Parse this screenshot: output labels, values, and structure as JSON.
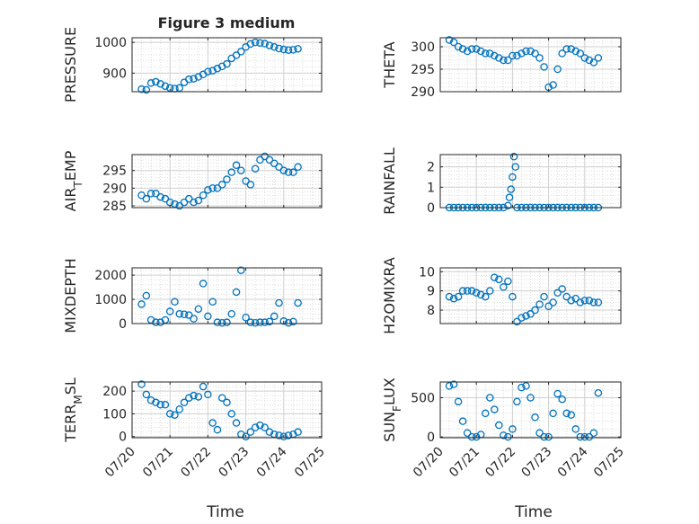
{
  "figure": {
    "title": "Figure 3 medium",
    "xlabel": "Time"
  },
  "chart_data": [
    {
      "type": "scatter",
      "title": "Figure 3 medium",
      "ylabel": "PRESSURE",
      "xlabel": "",
      "ylim": [
        840,
        1015
      ],
      "yticks": [
        900,
        1000
      ],
      "xlim": [
        "07/20",
        "07/25"
      ],
      "xticks": [
        "07/20",
        "07/21",
        "07/22",
        "07/23",
        "07/24",
        "07/25"
      ],
      "x_tick_labels_visible": false,
      "grid": true,
      "x": [
        "07/20 06:00",
        "07/20 09:00",
        "07/20 12:00",
        "07/20 15:00",
        "07/20 18:00",
        "07/20 21:00",
        "07/21 00:00",
        "07/21 03:00",
        "07/21 06:00",
        "07/21 09:00",
        "07/21 12:00",
        "07/21 15:00",
        "07/21 18:00",
        "07/21 21:00",
        "07/22 00:00",
        "07/22 03:00",
        "07/22 06:00",
        "07/22 09:00",
        "07/22 12:00",
        "07/22 15:00",
        "07/22 18:00",
        "07/22 21:00",
        "07/23 00:00",
        "07/23 03:00",
        "07/23 06:00",
        "07/23 09:00",
        "07/23 12:00",
        "07/23 15:00",
        "07/23 18:00",
        "07/23 21:00",
        "07/24 00:00",
        "07/24 03:00",
        "07/24 06:00",
        "07/24 09:00"
      ],
      "values": [
        848,
        846,
        868,
        872,
        865,
        858,
        852,
        850,
        852,
        870,
        880,
        882,
        888,
        896,
        905,
        908,
        915,
        922,
        930,
        948,
        958,
        970,
        985,
        995,
        1000,
        998,
        996,
        990,
        985,
        980,
        977,
        975,
        976,
        979
      ]
    },
    {
      "type": "scatter",
      "ylabel": "THETA",
      "ylim": [
        290,
        302
      ],
      "yticks": [
        290,
        295,
        300
      ],
      "xlim": [
        "07/20",
        "07/25"
      ],
      "xticks": [
        "07/20",
        "07/21",
        "07/22",
        "07/23",
        "07/24",
        "07/25"
      ],
      "x_tick_labels_visible": false,
      "grid": true,
      "x": [
        "07/20 06:00",
        "07/20 09:00",
        "07/20 12:00",
        "07/20 15:00",
        "07/20 18:00",
        "07/20 21:00",
        "07/21 00:00",
        "07/21 03:00",
        "07/21 06:00",
        "07/21 09:00",
        "07/21 12:00",
        "07/21 15:00",
        "07/21 18:00",
        "07/21 21:00",
        "07/22 00:00",
        "07/22 03:00",
        "07/22 06:00",
        "07/22 09:00",
        "07/22 12:00",
        "07/22 15:00",
        "07/22 18:00",
        "07/22 21:00",
        "07/23 00:00",
        "07/23 03:00",
        "07/23 06:00",
        "07/23 09:00",
        "07/23 12:00",
        "07/23 15:00",
        "07/23 18:00",
        "07/23 21:00",
        "07/24 00:00",
        "07/24 03:00",
        "07/24 06:00",
        "07/24 09:00"
      ],
      "values": [
        301.5,
        301,
        300,
        299.5,
        299,
        299.5,
        299.5,
        299,
        298.5,
        298.5,
        298,
        297.5,
        297,
        297,
        298,
        298,
        298.5,
        299,
        299,
        298.5,
        297.5,
        295.5,
        291,
        291.5,
        295,
        298.5,
        299.5,
        299.5,
        299,
        298.5,
        297.5,
        297,
        296.5,
        297.5
      ]
    },
    {
      "type": "scatter",
      "ylabel": "AIR_TEMP",
      "ylim": [
        284.5,
        299.5
      ],
      "yticks": [
        285,
        290,
        295
      ],
      "xlim": [
        "07/20",
        "07/25"
      ],
      "xticks": [
        "07/20",
        "07/21",
        "07/22",
        "07/23",
        "07/24",
        "07/25"
      ],
      "x_tick_labels_visible": false,
      "grid": true,
      "x": [
        "07/20 06:00",
        "07/20 09:00",
        "07/20 12:00",
        "07/20 15:00",
        "07/20 18:00",
        "07/20 21:00",
        "07/21 00:00",
        "07/21 03:00",
        "07/21 06:00",
        "07/21 09:00",
        "07/21 12:00",
        "07/21 15:00",
        "07/21 18:00",
        "07/21 21:00",
        "07/22 00:00",
        "07/22 03:00",
        "07/22 06:00",
        "07/22 09:00",
        "07/22 12:00",
        "07/22 15:00",
        "07/22 18:00",
        "07/22 21:00",
        "07/23 00:00",
        "07/23 03:00",
        "07/23 06:00",
        "07/23 09:00",
        "07/23 12:00",
        "07/23 15:00",
        "07/23 18:00",
        "07/23 21:00",
        "07/24 00:00",
        "07/24 03:00",
        "07/24 06:00",
        "07/24 09:00"
      ],
      "values": [
        288,
        287,
        288.5,
        288.5,
        287.5,
        287,
        286,
        285.5,
        285,
        286,
        287,
        286,
        286.5,
        288,
        289.5,
        290,
        290,
        291,
        292.5,
        294.5,
        296.5,
        295,
        292,
        291,
        295.5,
        298,
        299,
        298,
        297,
        296,
        295,
        294.5,
        294.5,
        296
      ]
    },
    {
      "type": "scatter",
      "ylabel": "RAINFALL",
      "ylim": [
        0,
        2.6
      ],
      "yticks": [
        0,
        1,
        2
      ],
      "xlim": [
        "07/20",
        "07/25"
      ],
      "xticks": [
        "07/20",
        "07/21",
        "07/22",
        "07/23",
        "07/24",
        "07/25"
      ],
      "x_tick_labels_visible": false,
      "grid": true,
      "x": [
        "07/20 06:00",
        "07/20 09:00",
        "07/20 12:00",
        "07/20 15:00",
        "07/20 18:00",
        "07/20 21:00",
        "07/21 00:00",
        "07/21 03:00",
        "07/21 06:00",
        "07/21 09:00",
        "07/21 12:00",
        "07/21 15:00",
        "07/21 18:00",
        "07/21 21:00",
        "07/21 22:00",
        "07/21 23:00",
        "07/22 00:00",
        "07/22 01:00",
        "07/22 02:00",
        "07/22 03:00",
        "07/22 06:00",
        "07/22 09:00",
        "07/22 12:00",
        "07/22 15:00",
        "07/22 18:00",
        "07/22 21:00",
        "07/23 00:00",
        "07/23 03:00",
        "07/23 06:00",
        "07/23 09:00",
        "07/23 12:00",
        "07/23 15:00",
        "07/23 18:00",
        "07/23 21:00",
        "07/24 00:00",
        "07/24 03:00",
        "07/24 06:00",
        "07/24 09:00"
      ],
      "values": [
        0,
        0,
        0,
        0,
        0,
        0,
        0,
        0,
        0,
        0,
        0,
        0,
        0,
        0.1,
        0.5,
        0.9,
        1.5,
        2.5,
        2.0,
        0,
        0,
        0,
        0,
        0,
        0,
        0,
        0,
        0,
        0,
        0,
        0,
        0,
        0,
        0,
        0,
        0,
        0,
        0
      ]
    },
    {
      "type": "scatter",
      "ylabel": "MIXDEPTH",
      "ylim": [
        0,
        2300
      ],
      "yticks": [
        0,
        1000,
        2000
      ],
      "xlim": [
        "07/20",
        "07/25"
      ],
      "xticks": [
        "07/20",
        "07/21",
        "07/22",
        "07/23",
        "07/24",
        "07/25"
      ],
      "x_tick_labels_visible": false,
      "grid": true,
      "x": [
        "07/20 06:00",
        "07/20 09:00",
        "07/20 12:00",
        "07/20 15:00",
        "07/20 18:00",
        "07/20 21:00",
        "07/21 00:00",
        "07/21 03:00",
        "07/21 06:00",
        "07/21 09:00",
        "07/21 12:00",
        "07/21 15:00",
        "07/21 18:00",
        "07/21 21:00",
        "07/22 00:00",
        "07/22 03:00",
        "07/22 06:00",
        "07/22 09:00",
        "07/22 12:00",
        "07/22 15:00",
        "07/22 18:00",
        "07/22 21:00",
        "07/23 00:00",
        "07/23 03:00",
        "07/23 06:00",
        "07/23 09:00",
        "07/23 12:00",
        "07/23 15:00",
        "07/23 18:00",
        "07/23 21:00",
        "07/24 00:00",
        "07/24 03:00",
        "07/24 06:00",
        "07/24 09:00"
      ],
      "values": [
        800,
        1150,
        150,
        50,
        50,
        150,
        500,
        900,
        400,
        380,
        350,
        200,
        600,
        1650,
        300,
        900,
        50,
        30,
        50,
        400,
        1300,
        2200,
        250,
        50,
        30,
        50,
        50,
        80,
        300,
        850,
        100,
        30,
        80,
        850
      ]
    },
    {
      "type": "scatter",
      "ylabel": "H2OMIXRA",
      "ylim": [
        7.3,
        10.2
      ],
      "yticks": [
        8,
        9,
        10
      ],
      "xlim": [
        "07/20",
        "07/25"
      ],
      "xticks": [
        "07/20",
        "07/21",
        "07/22",
        "07/23",
        "07/24",
        "07/25"
      ],
      "x_tick_labels_visible": false,
      "grid": true,
      "x": [
        "07/20 06:00",
        "07/20 09:00",
        "07/20 12:00",
        "07/20 15:00",
        "07/20 18:00",
        "07/20 21:00",
        "07/21 00:00",
        "07/21 03:00",
        "07/21 06:00",
        "07/21 09:00",
        "07/21 12:00",
        "07/21 15:00",
        "07/21 18:00",
        "07/21 21:00",
        "07/22 00:00",
        "07/22 03:00",
        "07/22 06:00",
        "07/22 09:00",
        "07/22 12:00",
        "07/22 15:00",
        "07/22 18:00",
        "07/22 21:00",
        "07/23 00:00",
        "07/23 03:00",
        "07/23 06:00",
        "07/23 09:00",
        "07/23 12:00",
        "07/23 15:00",
        "07/23 18:00",
        "07/23 21:00",
        "07/24 00:00",
        "07/24 03:00",
        "07/24 06:00",
        "07/24 09:00"
      ],
      "values": [
        8.7,
        8.6,
        8.7,
        9.0,
        9.0,
        9.0,
        8.9,
        8.8,
        8.7,
        9.0,
        9.7,
        9.6,
        9.2,
        9.5,
        8.7,
        7.4,
        7.6,
        7.7,
        7.8,
        8.0,
        8.3,
        8.7,
        8.2,
        8.4,
        8.9,
        9.1,
        8.7,
        8.5,
        8.6,
        8.4,
        8.5,
        8.5,
        8.4,
        8.4
      ]
    },
    {
      "type": "scatter",
      "ylabel": "TERR_MSL",
      "ylim": [
        -5,
        240
      ],
      "yticks": [
        0,
        100,
        200
      ],
      "xlim": [
        "07/20",
        "07/25"
      ],
      "xticks": [
        "07/20",
        "07/21",
        "07/22",
        "07/23",
        "07/24",
        "07/25"
      ],
      "x_tick_labels": [
        "07/20",
        "07/21",
        "07/22",
        "07/23",
        "07/24",
        "07/25"
      ],
      "x_tick_labels_visible": true,
      "xlabel": "Time",
      "grid": true,
      "x": [
        "07/20 06:00",
        "07/20 09:00",
        "07/20 12:00",
        "07/20 15:00",
        "07/20 18:00",
        "07/20 21:00",
        "07/21 00:00",
        "07/21 03:00",
        "07/21 06:00",
        "07/21 09:00",
        "07/21 12:00",
        "07/21 15:00",
        "07/21 18:00",
        "07/21 21:00",
        "07/22 00:00",
        "07/22 03:00",
        "07/22 06:00",
        "07/22 09:00",
        "07/22 12:00",
        "07/22 15:00",
        "07/22 18:00",
        "07/22 21:00",
        "07/23 00:00",
        "07/23 03:00",
        "07/23 06:00",
        "07/23 09:00",
        "07/23 12:00",
        "07/23 15:00",
        "07/23 18:00",
        "07/23 21:00",
        "07/24 00:00",
        "07/24 03:00",
        "07/24 06:00",
        "07/24 09:00"
      ],
      "values": [
        230,
        185,
        160,
        150,
        140,
        140,
        100,
        95,
        120,
        150,
        170,
        180,
        175,
        220,
        185,
        60,
        30,
        170,
        150,
        100,
        60,
        10,
        0,
        20,
        40,
        50,
        40,
        20,
        10,
        5,
        0,
        5,
        10,
        20
      ]
    },
    {
      "type": "scatter",
      "ylabel": "SUN_FLUX",
      "ylim": [
        -10,
        700
      ],
      "yticks": [
        0,
        500
      ],
      "xlim": [
        "07/20",
        "07/25"
      ],
      "xticks": [
        "07/20",
        "07/21",
        "07/22",
        "07/23",
        "07/24",
        "07/25"
      ],
      "x_tick_labels": [
        "07/20",
        "07/21",
        "07/22",
        "07/23",
        "07/24",
        "07/25"
      ],
      "x_tick_labels_visible": true,
      "xlabel": "Time",
      "grid": true,
      "x": [
        "07/20 06:00",
        "07/20 09:00",
        "07/20 12:00",
        "07/20 15:00",
        "07/20 18:00",
        "07/20 21:00",
        "07/21 00:00",
        "07/21 03:00",
        "07/21 06:00",
        "07/21 09:00",
        "07/21 12:00",
        "07/21 15:00",
        "07/21 18:00",
        "07/21 21:00",
        "07/22 00:00",
        "07/22 03:00",
        "07/22 06:00",
        "07/22 09:00",
        "07/22 12:00",
        "07/22 15:00",
        "07/22 18:00",
        "07/22 21:00",
        "07/23 00:00",
        "07/23 03:00",
        "07/23 06:00",
        "07/23 09:00",
        "07/23 12:00",
        "07/23 15:00",
        "07/23 18:00",
        "07/23 21:00",
        "07/24 00:00",
        "07/24 03:00",
        "07/24 06:00",
        "07/24 09:00"
      ],
      "values": [
        650,
        670,
        450,
        200,
        50,
        0,
        0,
        30,
        300,
        500,
        350,
        150,
        20,
        0,
        100,
        450,
        630,
        650,
        500,
        250,
        50,
        0,
        0,
        300,
        550,
        480,
        300,
        280,
        100,
        0,
        0,
        0,
        50,
        560
      ]
    }
  ]
}
